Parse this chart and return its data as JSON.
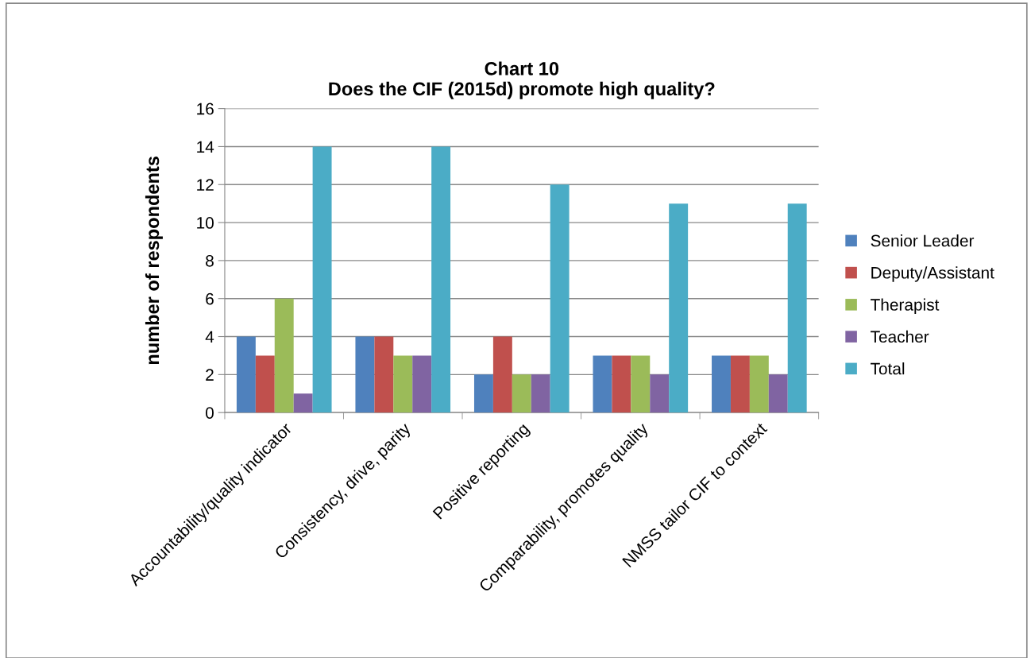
{
  "chart_data": {
    "type": "bar",
    "title": "Chart 10\nDoes the CIF (2015d) promote high quality?",
    "ylabel": "number of respondents",
    "categories": [
      "Accountability/quality indicator",
      "Consistency, drive, parity",
      "Positive reporting",
      "Comparability, promotes quality",
      "NMSS tailor CIF to context"
    ],
    "series": [
      {
        "name": "Senior Leader",
        "color": "#4f81bd",
        "values": [
          4,
          4,
          2,
          3,
          3
        ]
      },
      {
        "name": "Deputy/Assistant",
        "color": "#c0504d",
        "values": [
          3,
          4,
          4,
          3,
          3
        ]
      },
      {
        "name": "Therapist",
        "color": "#9bbb59",
        "values": [
          6,
          3,
          2,
          3,
          3
        ]
      },
      {
        "name": "Teacher",
        "color": "#8064a2",
        "values": [
          1,
          3,
          2,
          2,
          2
        ]
      },
      {
        "name": "Total",
        "color": "#4bacc6",
        "values": [
          14,
          14,
          12,
          11,
          11
        ]
      }
    ],
    "ylim": [
      0,
      16
    ],
    "yticks": [
      0,
      2,
      4,
      6,
      8,
      10,
      12,
      14,
      16
    ],
    "grid": "y",
    "legend": "right"
  }
}
